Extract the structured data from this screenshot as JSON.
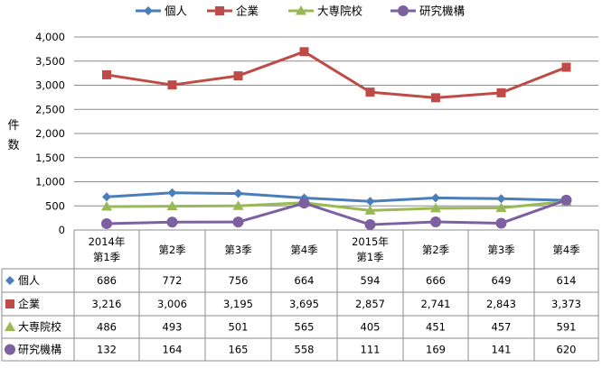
{
  "chart_data": {
    "type": "line",
    "title": "",
    "ylabel": "件数",
    "xlabel": "",
    "ylim": [
      0,
      4000
    ],
    "yticks": [
      "0",
      "500",
      "1,000",
      "1,500",
      "2,000",
      "2,500",
      "3,000",
      "3,500",
      "4,000"
    ],
    "ytick_values": [
      0,
      500,
      1000,
      1500,
      2000,
      2500,
      3000,
      3500,
      4000
    ],
    "grid": true,
    "legend_position": "top",
    "categories": [
      [
        "2014年",
        "第1季"
      ],
      [
        "第2季"
      ],
      [
        "第3季"
      ],
      [
        "第4季"
      ],
      [
        "2015年",
        "第1季"
      ],
      [
        "第2季"
      ],
      [
        "第3季"
      ],
      [
        "第4季"
      ]
    ],
    "series": [
      {
        "name": "個人",
        "color": "#4a7ebb",
        "marker": "diamond",
        "values": [
          686,
          772,
          756,
          664,
          594,
          666,
          649,
          614
        ],
        "labels": [
          "686",
          "772",
          "756",
          "664",
          "594",
          "666",
          "649",
          "614"
        ]
      },
      {
        "name": "企業",
        "color": "#be4b48",
        "marker": "square",
        "values": [
          3216,
          3006,
          3195,
          3695,
          2857,
          2741,
          2843,
          3373
        ],
        "labels": [
          "3,216",
          "3,006",
          "3,195",
          "3,695",
          "2,857",
          "2,741",
          "2,843",
          "3,373"
        ]
      },
      {
        "name": "大専院校",
        "color": "#98b954",
        "marker": "triangle",
        "values": [
          486,
          493,
          501,
          565,
          405,
          451,
          457,
          591
        ],
        "labels": [
          "486",
          "493",
          "501",
          "565",
          "405",
          "451",
          "457",
          "591"
        ]
      },
      {
        "name": "研究機構",
        "color": "#7d60a0",
        "marker": "circle",
        "values": [
          132,
          164,
          165,
          558,
          111,
          169,
          141,
          620
        ],
        "labels": [
          "132",
          "164",
          "165",
          "558",
          "111",
          "169",
          "141",
          "620"
        ]
      }
    ]
  }
}
